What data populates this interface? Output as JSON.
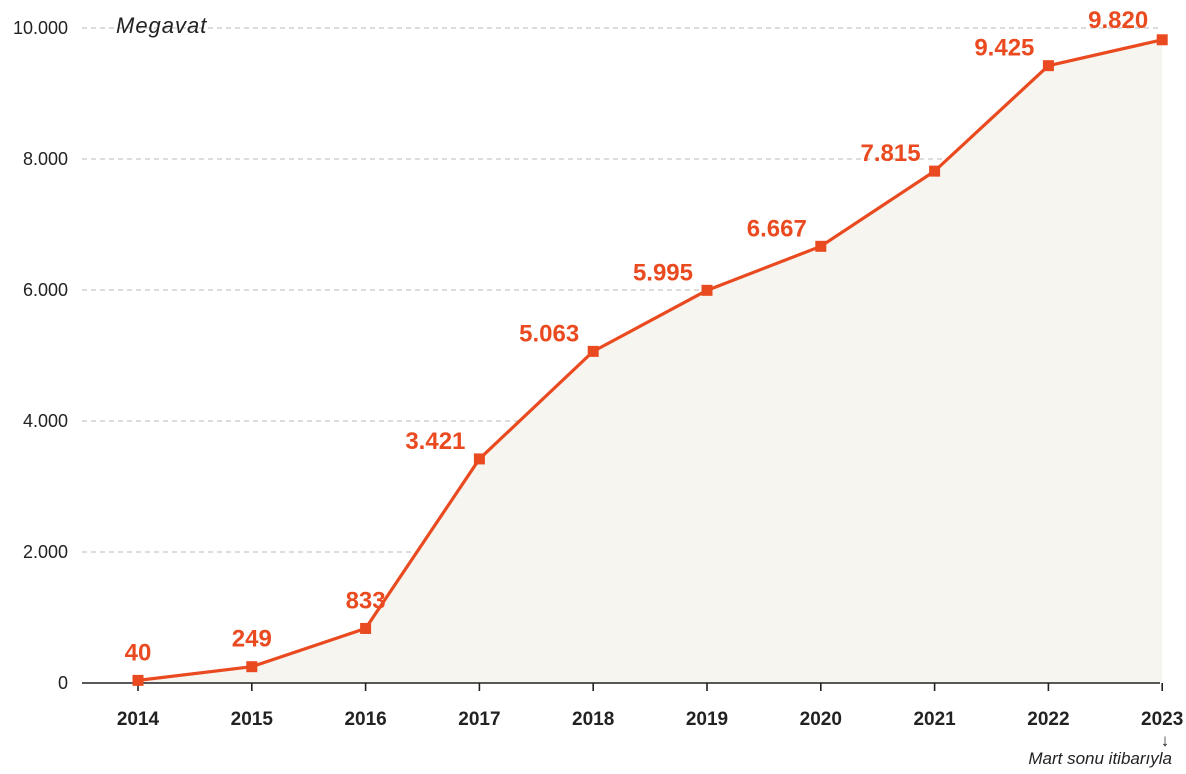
{
  "chart_data": {
    "type": "area",
    "ylabel": "Megavat",
    "categories": [
      "2014",
      "2015",
      "2016",
      "2017",
      "2018",
      "2019",
      "2020",
      "2021",
      "2022",
      "2023"
    ],
    "values": [
      40,
      249,
      833,
      3421,
      5063,
      5995,
      6667,
      7815,
      9425,
      9820
    ],
    "data_labels": [
      "40",
      "249",
      "833",
      "3.421",
      "5.063",
      "5.995",
      "6.667",
      "7.815",
      "9.425",
      "9.820"
    ],
    "ylim": [
      0,
      10000
    ],
    "yticks": [
      0,
      2000,
      4000,
      6000,
      8000,
      10000
    ],
    "ytick_labels": [
      "0",
      "2.000",
      "4.000",
      "6.000",
      "8.000",
      "10.000"
    ],
    "grid": "horizontal dashed",
    "annotation": "Mart sonu itibarıyla",
    "colors": {
      "line": "#ea4a1f",
      "marker": "#ea4a1f",
      "fill": "#f6f5f0",
      "grid": "#c8c8c8",
      "axis": "#222222"
    }
  }
}
